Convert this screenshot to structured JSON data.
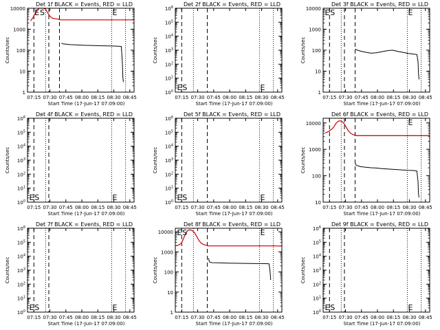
{
  "figure": {
    "background": "#ffffff",
    "foreground": "#000000",
    "events_color": "#000000",
    "lld_color": "#d01010"
  },
  "chart_data": [
    {
      "type": "line",
      "title": "Det 1f BLACK = Events, RED = LLD",
      "xlabel": "Start Time (17-Jun-17 07:09:00)",
      "ylabel": "Counts/sec",
      "x_ticks": [
        "07:15",
        "07:30",
        "07:45",
        "08:00",
        "08:15",
        "08:30",
        "08:45"
      ],
      "xlim_min": [
        0,
        100
      ],
      "yscale": "log",
      "ylim": [
        1,
        10000
      ],
      "y_ticks": [
        "1",
        "10",
        "100",
        "1000",
        "10000"
      ],
      "markers": {
        "dashed_min": [
          6,
          20,
          30
        ],
        "dotted_min": [
          17,
          79,
          92
        ]
      },
      "letters": [
        {
          "text": "E",
          "x_min": 6
        },
        {
          "text": "S",
          "x_min": 11
        },
        {
          "text": "E",
          "x_min": 79
        }
      ],
      "series": [
        {
          "name": "RED = LLD",
          "color": "red",
          "x_min": [
            3,
            5,
            7,
            9,
            11,
            13,
            15,
            17,
            19,
            21,
            23,
            25,
            27,
            29,
            29.5,
            32,
            40,
            50,
            60,
            70,
            80,
            90,
            100
          ],
          "y": [
            2500,
            3500,
            5500,
            8000,
            10500,
            11500,
            11000,
            9000,
            6000,
            4200,
            3400,
            3200,
            3100,
            3050,
            2900,
            2800,
            2800,
            2800,
            2800,
            2800,
            2800,
            2800,
            2800
          ]
        },
        {
          "name": "BLACK = Events",
          "color": "black",
          "x_min": [
            32,
            33,
            40,
            45,
            50,
            55,
            60,
            65,
            70,
            75,
            80,
            85,
            88,
            89,
            89.5,
            90
          ],
          "y": [
            220,
            200,
            185,
            180,
            175,
            170,
            168,
            165,
            162,
            160,
            158,
            155,
            152,
            30,
            5,
            3
          ]
        }
      ]
    },
    {
      "type": "line",
      "title": "Det 2f BLACK = Events, RED = LLD",
      "xlabel": "Start Time (17-Jun-17 07:09:00)",
      "ylabel": "Counts/sec",
      "x_ticks": [
        "07:15",
        "07:30",
        "07:45",
        "08:00",
        "08:15",
        "08:30",
        "08:45"
      ],
      "xlim_min": [
        0,
        100
      ],
      "yscale": "log",
      "ylim": [
        1,
        1000000
      ],
      "y_ticks": [
        "10^0",
        "10^1",
        "10^2",
        "10^3",
        "10^4",
        "10^5",
        "10^6"
      ],
      "markers": {
        "dashed_min": [
          6,
          30
        ],
        "dotted_min": [
          17,
          79,
          92
        ]
      },
      "letters": [
        {
          "text": "E",
          "x_min": 1
        },
        {
          "text": "S",
          "x_min": 6
        },
        {
          "text": "E",
          "x_min": 79
        }
      ],
      "series": []
    },
    {
      "type": "line",
      "title": "Det 3f BLACK = Events, RED = LLD",
      "xlabel": "Start Time (17-Jun-17 07:09:00)",
      "ylabel": "Counts/sec",
      "x_ticks": [
        "07:15",
        "07:30",
        "07:45",
        "08:00",
        "08:15",
        "08:30",
        "08:45"
      ],
      "xlim_min": [
        0,
        100
      ],
      "yscale": "log",
      "ylim": [
        1,
        10000
      ],
      "y_ticks": [
        "1",
        "10",
        "100",
        "1000",
        "10000"
      ],
      "markers": {
        "dashed_min": [
          6,
          20,
          30
        ],
        "dotted_min": [
          17,
          79,
          92
        ]
      },
      "letters": [
        {
          "text": "E",
          "x_min": 1
        },
        {
          "text": "S",
          "x_min": 6
        },
        {
          "text": "E",
          "x_min": 79
        }
      ],
      "series": [
        {
          "name": "BLACK = Events",
          "color": "black",
          "x_min": [
            30.5,
            31,
            35,
            40,
            45,
            50,
            55,
            60,
            65,
            70,
            75,
            80,
            85,
            88,
            89,
            89.5,
            90
          ],
          "y": [
            115,
            105,
            90,
            80,
            72,
            75,
            85,
            95,
            100,
            88,
            78,
            70,
            65,
            62,
            30,
            8,
            4
          ]
        }
      ]
    },
    {
      "type": "line",
      "title": "Det 4f BLACK = Events, RED = LLD",
      "xlabel": "Start Time (17-Jun-17 07:09:00)",
      "ylabel": "Counts/sec",
      "x_ticks": [
        "07:15",
        "07:30",
        "07:45",
        "08:00",
        "08:15",
        "08:30",
        "08:45"
      ],
      "xlim_min": [
        0,
        100
      ],
      "yscale": "log",
      "ylim": [
        1,
        1000000
      ],
      "y_ticks": [
        "10^0",
        "10^1",
        "10^2",
        "10^3",
        "10^4",
        "10^5",
        "10^6"
      ],
      "markers": {
        "dashed_min": [
          6,
          20
        ],
        "dotted_min": [
          17,
          79,
          92
        ]
      },
      "letters": [
        {
          "text": "E",
          "x_min": 1
        },
        {
          "text": "S",
          "x_min": 6
        },
        {
          "text": "E",
          "x_min": 79
        }
      ],
      "series": []
    },
    {
      "type": "line",
      "title": "Det 5f BLACK = Events, RED = LLD",
      "xlabel": "Start Time (17-Jun-17 07:09:00)",
      "ylabel": "Counts/sec",
      "x_ticks": [
        "07:15",
        "07:30",
        "07:45",
        "08:00",
        "08:15",
        "08:30",
        "08:45"
      ],
      "xlim_min": [
        0,
        100
      ],
      "yscale": "log",
      "ylim": [
        1,
        1000000
      ],
      "y_ticks": [
        "10^0",
        "10^1",
        "10^2",
        "10^3",
        "10^4",
        "10^5",
        "10^6"
      ],
      "markers": {
        "dashed_min": [
          6,
          30
        ],
        "dotted_min": [
          17,
          79,
          92
        ]
      },
      "letters": [
        {
          "text": "E",
          "x_min": 1
        },
        {
          "text": "S",
          "x_min": 6
        },
        {
          "text": "E",
          "x_min": 79
        }
      ],
      "series": []
    },
    {
      "type": "line",
      "title": "Det 6f BLACK = Events, RED = LLD",
      "xlabel": "Start Time (17-Jun-17 07:09:00)",
      "ylabel": "Counts/sec",
      "x_ticks": [
        "07:15",
        "07:30",
        "07:45",
        "08:00",
        "08:15",
        "08:30",
        "08:45"
      ],
      "xlim_min": [
        0,
        100
      ],
      "yscale": "log",
      "ylim": [
        10,
        15000
      ],
      "y_ticks": [
        "10",
        "100",
        "1000",
        "10000"
      ],
      "markers": {
        "dashed_min": [
          6,
          20,
          30
        ],
        "dotted_min": [
          17,
          79,
          92
        ]
      },
      "letters": [
        {
          "text": "E",
          "x_min": 79
        }
      ],
      "series": [
        {
          "name": "RED = LLD",
          "color": "red",
          "x_min": [
            2,
            4,
            6,
            8,
            10,
            12,
            14,
            16,
            18,
            20,
            22,
            24,
            26,
            28,
            30,
            32,
            40,
            50,
            60,
            70,
            80,
            90,
            100
          ],
          "y": [
            4200,
            4500,
            5000,
            5800,
            7000,
            9500,
            11500,
            12000,
            11000,
            9000,
            6500,
            4800,
            4000,
            3600,
            3400,
            3300,
            3300,
            3300,
            3300,
            3300,
            3300,
            3300,
            3300
          ]
        },
        {
          "name": "BLACK = Events",
          "color": "black",
          "x_min": [
            30.5,
            31,
            35,
            40,
            45,
            50,
            55,
            60,
            65,
            70,
            75,
            80,
            85,
            88,
            89,
            89.5,
            90
          ],
          "y": [
            290,
            250,
            220,
            210,
            200,
            195,
            185,
            180,
            175,
            170,
            165,
            160,
            158,
            150,
            60,
            20,
            15
          ]
        }
      ]
    },
    {
      "type": "line",
      "title": "Det 7f BLACK = Events, RED = LLD",
      "xlabel": "Start Time (17-Jun-17 07:09:00)",
      "ylabel": "Counts/sec",
      "x_ticks": [
        "07:15",
        "07:30",
        "07:45",
        "08:00",
        "08:15",
        "08:30",
        "08:45"
      ],
      "xlim_min": [
        0,
        100
      ],
      "yscale": "log",
      "ylim": [
        1,
        1000000
      ],
      "y_ticks": [
        "10^0",
        "10^1",
        "10^2",
        "10^3",
        "10^4",
        "10^5",
        "10^6"
      ],
      "markers": {
        "dashed_min": [
          6,
          20
        ],
        "dotted_min": [
          17,
          79,
          92
        ]
      },
      "letters": [
        {
          "text": "E",
          "x_min": 1
        },
        {
          "text": "S",
          "x_min": 6
        },
        {
          "text": "E",
          "x_min": 79
        }
      ],
      "series": []
    },
    {
      "type": "line",
      "title": "Det 8f BLACK = Events, RED = LLD",
      "xlabel": "Start Time (17-Jun-17 07:09:00)",
      "ylabel": "Counts/sec",
      "x_ticks": [
        "07:15",
        "07:30",
        "07:45",
        "08:00",
        "08:15",
        "08:30",
        "08:45"
      ],
      "xlim_min": [
        0,
        100
      ],
      "yscale": "log",
      "ylim": [
        1,
        15000
      ],
      "y_ticks": [
        "1",
        "10",
        "100",
        "1000",
        "10000"
      ],
      "markers": {
        "dashed_min": [
          6,
          30
        ],
        "dotted_min": [
          17,
          79,
          92
        ]
      },
      "letters": [
        {
          "text": "E",
          "x_min": 1
        },
        {
          "text": "S",
          "x_min": 6
        },
        {
          "text": "E",
          "x_min": 79
        }
      ],
      "series": [
        {
          "name": "RED = LLD",
          "color": "red",
          "x_min": [
            0,
            2,
            4,
            6,
            8,
            10,
            12,
            14,
            16,
            18,
            20,
            22,
            24,
            26,
            28,
            30,
            31,
            40,
            50,
            60,
            70,
            80,
            90,
            100
          ],
          "y": [
            2000,
            2100,
            2300,
            2800,
            5000,
            9000,
            12000,
            12500,
            11500,
            9000,
            6000,
            3800,
            2800,
            2400,
            2200,
            2100,
            2000,
            2000,
            2000,
            2000,
            2000,
            2000,
            2000,
            1950
          ]
        },
        {
          "name": "BLACK = Events",
          "color": "black",
          "x_min": [
            31,
            32,
            33,
            35,
            40,
            45,
            50,
            55,
            60,
            65,
            70,
            75,
            80,
            85,
            88,
            89,
            89.5
          ],
          "y": [
            500,
            320,
            300,
            290,
            285,
            280,
            275,
            272,
            270,
            268,
            265,
            262,
            260,
            258,
            255,
            100,
            40
          ]
        }
      ]
    },
    {
      "type": "line",
      "title": "Det 9f BLACK = Events, RED = LLD",
      "xlabel": "Start Time (17-Jun-17 07:09:00)",
      "ylabel": "Counts/sec",
      "x_ticks": [
        "07:15",
        "07:30",
        "07:45",
        "08:00",
        "08:15",
        "08:30",
        "08:45"
      ],
      "xlim_min": [
        0,
        100
      ],
      "yscale": "log",
      "ylim": [
        1,
        1000000
      ],
      "y_ticks": [
        "10^0",
        "10^1",
        "10^2",
        "10^3",
        "10^4",
        "10^5",
        "10^6"
      ],
      "markers": {
        "dashed_min": [
          6,
          20
        ],
        "dotted_min": [
          17,
          79,
          92
        ]
      },
      "letters": [
        {
          "text": "E",
          "x_min": 1
        },
        {
          "text": "S",
          "x_min": 6
        },
        {
          "text": "E",
          "x_min": 79
        }
      ],
      "series": []
    }
  ]
}
